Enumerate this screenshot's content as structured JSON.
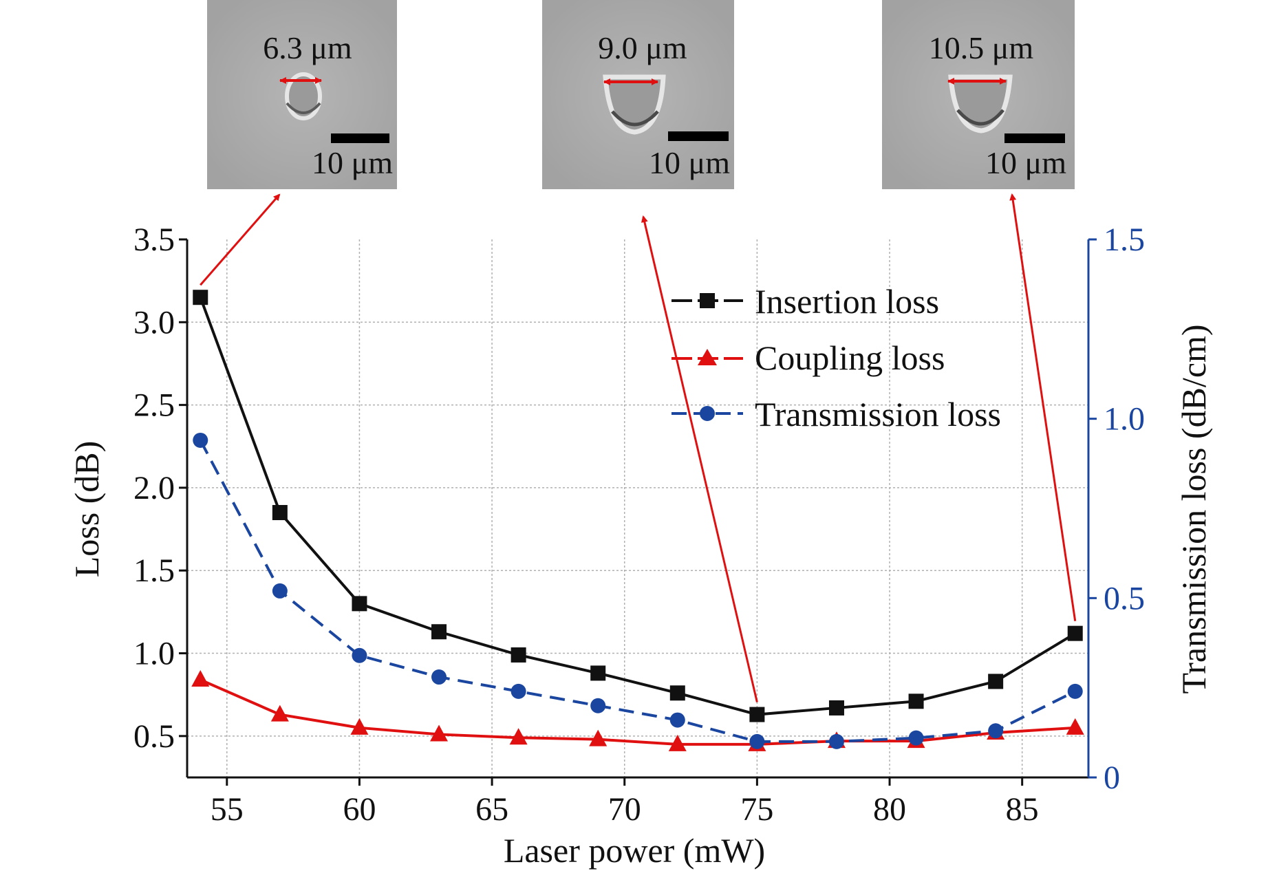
{
  "colors": {
    "insertion": "#111111",
    "coupling": "#e01010",
    "transmission": "#1a46a0",
    "arrow": "#e01010",
    "grid": "#b0b0b0",
    "micrograph_bg": "#a8a8a8"
  },
  "insets": [
    {
      "width_label": "6.3 μm",
      "scale_label": "10 μm"
    },
    {
      "width_label": "9.0 μm",
      "scale_label": "10 μm"
    },
    {
      "width_label": "10.5 μm",
      "scale_label": "10 μm"
    }
  ],
  "chart_data": {
    "type": "line",
    "xlabel": "Laser power (mW)",
    "ylabel": "Loss (dB)",
    "y2label": "Transmission loss (dB/cm)",
    "xlim": [
      53.5,
      87.5
    ],
    "ylim": [
      0.25,
      3.5
    ],
    "y2lim": [
      0,
      1.5
    ],
    "xticks": [
      55,
      60,
      65,
      70,
      75,
      80,
      85
    ],
    "yticks": [
      0.5,
      1.0,
      1.5,
      2.0,
      2.5,
      3.0,
      3.5
    ],
    "y2ticks": [
      0,
      0.5,
      1.0,
      1.5
    ],
    "xtick_labels": [
      "55",
      "60",
      "65",
      "70",
      "75",
      "80",
      "85"
    ],
    "ytick_labels": [
      "0.5",
      "1.0",
      "1.5",
      "2.0",
      "2.5",
      "3.0",
      "3.5"
    ],
    "y2tick_labels": [
      "0",
      "0.5",
      "1.0",
      "1.5"
    ],
    "grid": true,
    "legend_position": "top-right",
    "x": [
      54,
      57,
      60,
      63,
      66,
      69,
      72,
      75,
      78,
      81,
      84,
      87
    ],
    "series": [
      {
        "name": "Insertion loss",
        "axis": "left",
        "marker": "square",
        "line": "solid",
        "values": [
          3.15,
          1.85,
          1.3,
          1.13,
          0.99,
          0.88,
          0.76,
          0.63,
          0.67,
          0.71,
          0.83,
          1.12
        ]
      },
      {
        "name": "Coupling loss",
        "axis": "left",
        "marker": "triangle",
        "line": "solid",
        "values": [
          0.84,
          0.63,
          0.55,
          0.51,
          0.49,
          0.48,
          0.45,
          0.45,
          0.47,
          0.47,
          0.52,
          0.55
        ]
      },
      {
        "name": "Transmission loss",
        "axis": "right",
        "marker": "circle",
        "line": "dashed",
        "values": [
          0.94,
          0.52,
          0.34,
          0.28,
          0.24,
          0.2,
          0.16,
          0.1,
          0.1,
          0.11,
          0.13,
          0.24
        ]
      }
    ],
    "annotations": [
      {
        "x": 54,
        "inset": 0
      },
      {
        "x": 75,
        "inset": 1
      },
      {
        "x": 87,
        "inset": 2
      }
    ]
  }
}
